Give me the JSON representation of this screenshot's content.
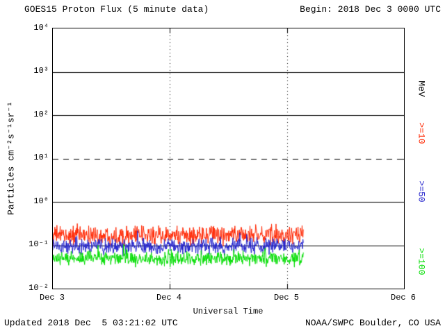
{
  "title": "GOES15 Proton Flux (5 minute data)",
  "begin_label": "Begin: 2018 Dec 3 0000 UTC",
  "updated_label": "Updated 2018 Dec  5 03:21:02 UTC",
  "credit_label": "NOAA/SWPC Boulder, CO USA",
  "axes": {
    "xlabel": "Universal Time",
    "ylabel": "Particles cm⁻²s⁻¹sr⁻¹",
    "right_unit": "MeV",
    "y_ticks": [
      "10⁴",
      "10³",
      "10²",
      "10¹",
      "10⁰",
      "10⁻¹",
      "10⁻²"
    ],
    "x_ticks": [
      "Dec 3",
      "Dec 4",
      "Dec 5",
      "Dec 6"
    ]
  },
  "chart_data": {
    "type": "line",
    "title": "GOES15 Proton Flux (5 minute data)",
    "xlabel": "Universal Time",
    "ylabel": "Particles cm-2 s-1 sr-1 (log scale)",
    "x_start": "2018 Dec 3 0000 UTC",
    "x_end_axis": "2018 Dec 6 0000 UTC",
    "total_days": 3,
    "data_end_day_fraction": 2.14,
    "sample_interval_minutes": 5,
    "y_scale": "log",
    "ylim": [
      0.01,
      10000
    ],
    "grid": {
      "solid_decades": [
        1000,
        100,
        1,
        0.1
      ],
      "dashed_decades": [
        10
      ],
      "vertical_day_lines": [
        "Dec 4",
        "Dec 5"
      ]
    },
    "legend_position": "right",
    "series": [
      {
        "name": ">=10 MeV",
        "label": ">=10",
        "color": "#ff2600",
        "approx_mean_flux": 0.17,
        "approx_range": [
          0.09,
          0.5
        ],
        "behavior": "flat noisy background, no event"
      },
      {
        "name": ">=50 MeV",
        "label": ">=50",
        "color": "#2222cc",
        "approx_mean_flux": 0.095,
        "approx_range": [
          0.05,
          0.22
        ],
        "behavior": "flat noisy background, no event"
      },
      {
        "name": ">=100 MeV",
        "label": ">=100",
        "color": "#00dd00",
        "approx_mean_flux": 0.05,
        "approx_range": [
          0.026,
          0.095
        ],
        "behavior": "flat noisy background, no event"
      }
    ]
  }
}
